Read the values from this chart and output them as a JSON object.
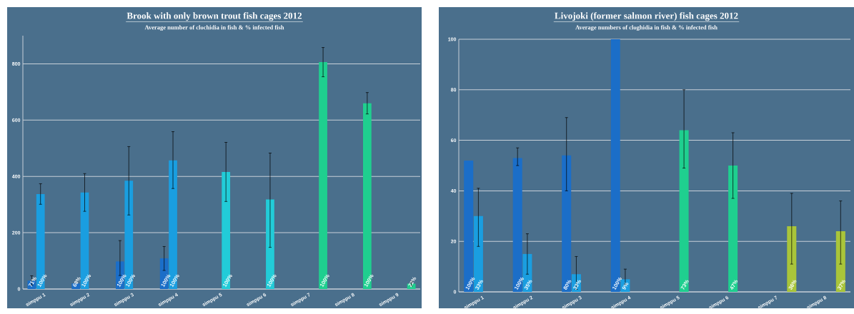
{
  "chart_data": [
    {
      "type": "bar",
      "title": "Brook with only brown trout fish cages 2012",
      "subtitle": "Average number of clochidia in fish & % infected fish",
      "categories": [
        "simppu 1",
        "simppu 2",
        "simppu 3",
        "simppu 4",
        "simppu 5",
        "simppu 6",
        "simppu 7",
        "simppu 8",
        "simppu 9"
      ],
      "series": [
        {
          "color": "#1b6ec8",
          "values": [
            30,
            20,
            98,
            109,
            null,
            null,
            null,
            null,
            null
          ],
          "errors": [
            [
              14,
              47
            ],
            null,
            [
              48,
              172
            ],
            [
              66,
              151
            ],
            null,
            null,
            null,
            null,
            null
          ]
        },
        {
          "color": "#1a9ee0",
          "values": [
            337,
            343,
            385,
            457,
            null,
            null,
            null,
            null,
            null
          ],
          "errors": [
            [
              301,
              374
            ],
            [
              276,
              410
            ],
            [
              263,
              506
            ],
            [
              357,
              559
            ],
            null,
            null,
            null,
            null,
            null
          ]
        },
        {
          "color": "#22ccd8",
          "values": [
            null,
            null,
            null,
            null,
            416,
            318,
            null,
            null,
            null
          ],
          "errors": [
            null,
            null,
            null,
            null,
            [
              311,
              521
            ],
            [
              148,
              483
            ],
            null,
            null,
            null
          ]
        },
        {
          "color": "#1fcf8f",
          "values": [
            null,
            null,
            null,
            null,
            null,
            null,
            806,
            660,
            19
          ],
          "errors": [
            null,
            null,
            null,
            null,
            null,
            null,
            [
              754,
              858
            ],
            [
              622,
              698
            ],
            [
              11,
              27
            ]
          ]
        }
      ],
      "annotations": [
        "71%",
        "100%",
        "68%",
        "100%",
        "100%",
        "100%",
        "100%",
        "100%",
        "100%",
        "100%",
        "100%",
        "100%",
        "22%"
      ],
      "ylim": [
        0,
        900
      ],
      "yticks": [
        0,
        200,
        400,
        600,
        800
      ],
      "grid": "y"
    },
    {
      "type": "bar",
      "title": "Livojoki (former salmon river) fish cages 2012",
      "subtitle": "Average numbers of cloghidia in fish  & % infected fish",
      "categories": [
        "simppu 1",
        "simppu 2",
        "simppu 3",
        "simppu 4",
        "simppu 5",
        "simppu 6",
        "simppu 7",
        "simppu 8"
      ],
      "series": [
        {
          "color": "#1b6ec8",
          "values": [
            52,
            53,
            54,
            100,
            null,
            null,
            null,
            null
          ],
          "errors": [
            null,
            [
              50,
              57
            ],
            [
              40,
              69
            ],
            null,
            null,
            null,
            null,
            null
          ]
        },
        {
          "color": "#1a9ee0",
          "values": [
            30,
            15,
            7,
            5,
            null,
            null,
            null,
            null
          ],
          "errors": [
            [
              18,
              41
            ],
            [
              7,
              23
            ],
            [
              1,
              14
            ],
            [
              3,
              9
            ],
            null,
            null,
            null,
            null
          ]
        },
        {
          "color": "#1fcf8f",
          "values": [
            null,
            null,
            null,
            null,
            64,
            50,
            null,
            null
          ],
          "errors": [
            null,
            null,
            null,
            null,
            [
              49,
              80
            ],
            [
              37,
              63
            ],
            null,
            null
          ]
        },
        {
          "color": "#a9c53a",
          "values": [
            null,
            null,
            null,
            null,
            null,
            null,
            26,
            24
          ],
          "errors": [
            null,
            null,
            null,
            null,
            null,
            null,
            [
              11,
              39
            ],
            [
              11,
              36
            ]
          ]
        }
      ],
      "annotations": [
        "100%",
        "33%",
        "100%",
        "35%",
        "80%",
        "33%",
        "100%",
        "9%",
        "73%",
        "47%",
        "36%",
        "37%"
      ],
      "ylim": [
        0,
        100
      ],
      "yticks": [
        0,
        20,
        40,
        60,
        80,
        100
      ],
      "grid": "y"
    }
  ]
}
